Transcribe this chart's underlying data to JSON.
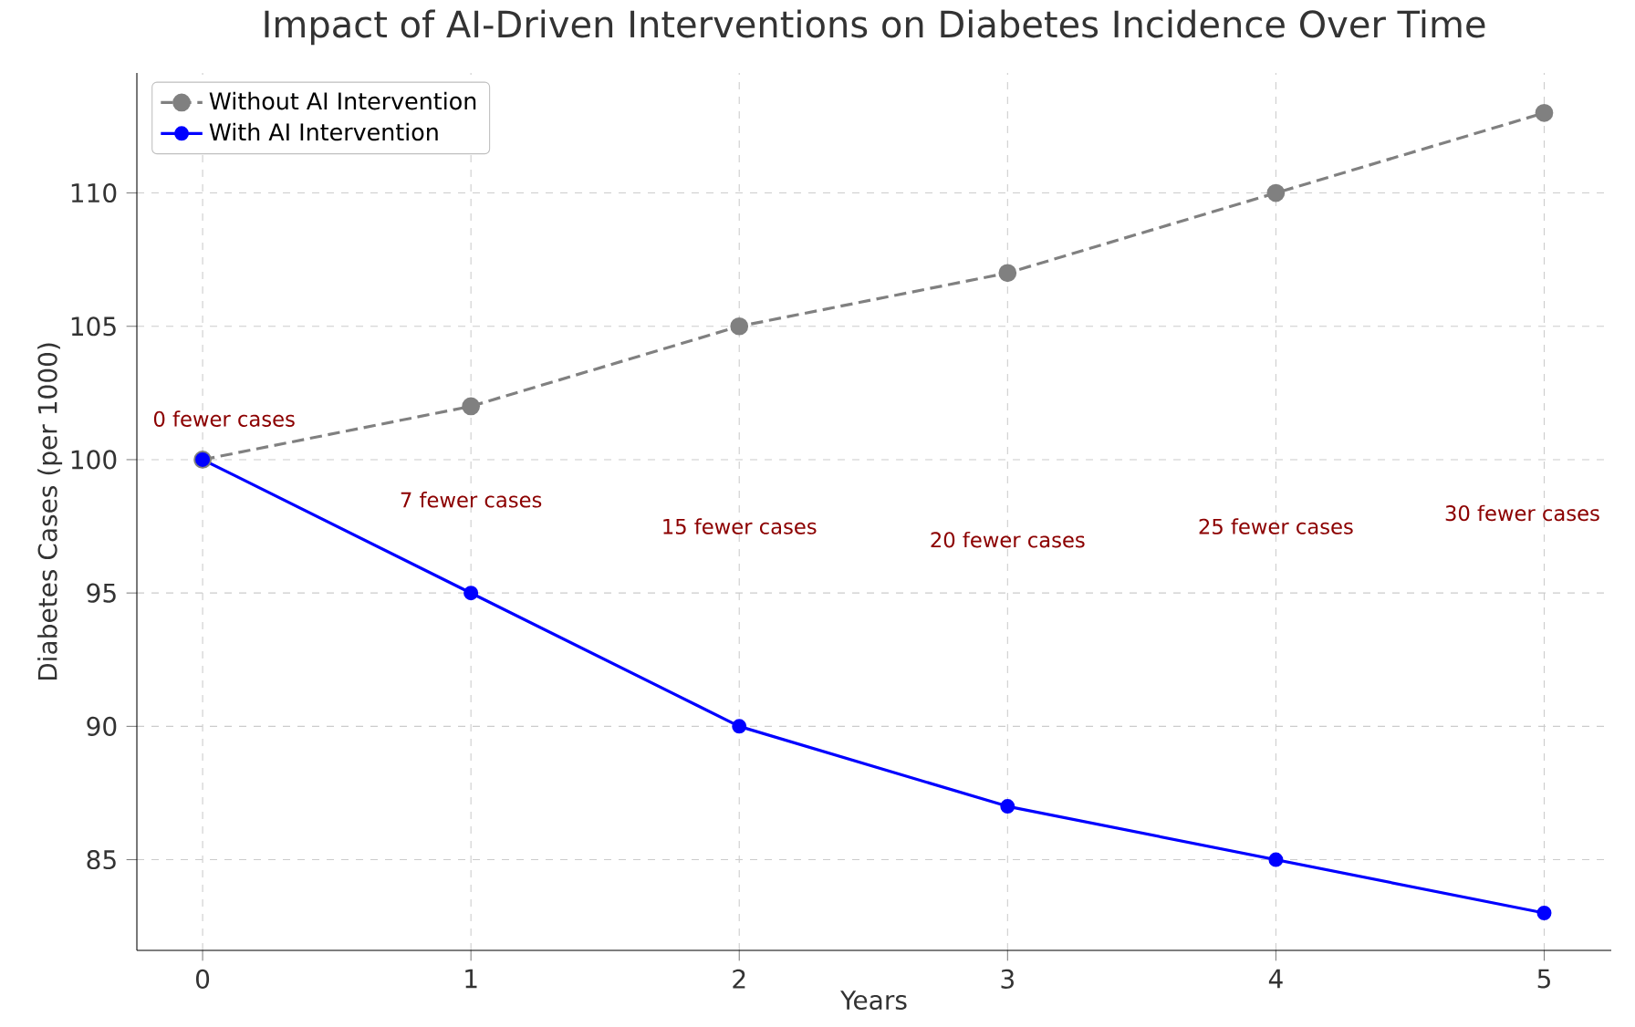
{
  "chart_data": {
    "type": "line",
    "title": "Impact of AI-Driven Interventions on Diabetes Incidence Over Time",
    "xlabel": "Years",
    "ylabel": "Diabetes Cases (per 1000)",
    "x": [
      0,
      1,
      2,
      3,
      4,
      5
    ],
    "series": [
      {
        "name": "Without AI Intervention",
        "color": "#808080",
        "values": [
          100,
          102,
          105,
          107,
          110,
          113
        ],
        "line_style": "dashed"
      },
      {
        "name": "With AI Intervention",
        "color": "#0000ff",
        "values": [
          100,
          95,
          90,
          87,
          85,
          83
        ],
        "line_style": "solid"
      }
    ],
    "annotations": [
      "0 fewer cases",
      "7 fewer cases",
      "15 fewer cases",
      "20 fewer cases",
      "25 fewer cases",
      "30 fewer cases"
    ],
    "xlim": [
      -0.245,
      5.25
    ],
    "ylim": [
      81.6,
      114.5
    ],
    "xticks": [
      0,
      1,
      2,
      3,
      4,
      5
    ],
    "yticks": [
      85,
      90,
      95,
      100,
      105,
      110
    ],
    "grid": true,
    "legend": "top left",
    "marker": "circle"
  }
}
